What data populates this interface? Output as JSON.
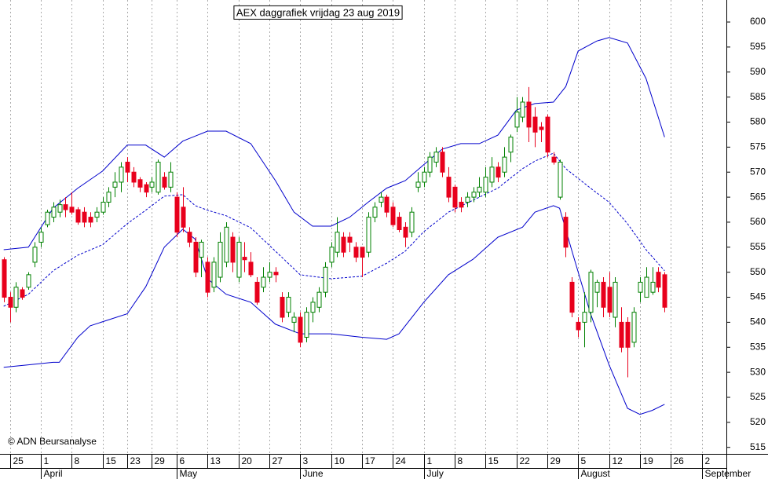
{
  "chart_data": {
    "type": "candlestick",
    "title": "AEX daggrafiek vrijdag 23 aug 2019",
    "annotation": "© ADN Beursanalyse",
    "x": [
      0,
      1,
      2,
      3,
      4,
      5,
      6,
      7,
      8,
      9,
      10,
      11,
      12,
      13,
      14,
      15,
      16,
      17,
      18,
      19,
      20,
      21,
      22,
      23,
      24,
      25,
      26,
      27,
      28,
      29,
      30,
      31,
      32,
      33,
      34,
      35,
      36,
      37,
      38,
      39,
      40,
      41,
      42,
      43,
      44,
      45,
      46,
      47,
      48,
      49,
      50,
      51,
      52,
      53,
      54,
      55,
      56,
      57,
      58,
      59,
      60,
      61,
      62,
      63,
      64,
      65,
      66,
      67,
      68,
      69,
      70,
      71,
      72,
      73,
      74,
      75,
      76,
      77,
      78,
      79,
      80,
      81,
      82,
      83,
      84,
      85,
      86,
      87,
      88,
      89,
      90,
      91,
      92,
      93,
      94,
      95,
      96,
      97,
      98,
      99,
      100,
      101,
      102,
      103,
      104,
      105,
      106,
      107
    ],
    "open": [
      552.5,
      545,
      543,
      546.5,
      547,
      552,
      556,
      559.5,
      561,
      562,
      563.5,
      563,
      562.5,
      562,
      561,
      561,
      562,
      564,
      567,
      568,
      572,
      570,
      568.5,
      567.5,
      567,
      566,
      569,
      567,
      565,
      563,
      558,
      556,
      553,
      552,
      547,
      549,
      552,
      557,
      549,
      553,
      552,
      548,
      547,
      549,
      550,
      545,
      542,
      540,
      541,
      537,
      542,
      543,
      546,
      552,
      554,
      557,
      557,
      555,
      555,
      554,
      561,
      564,
      565,
      563,
      561,
      559,
      558,
      567,
      568,
      570,
      572,
      574,
      569,
      567,
      564,
      564,
      565,
      566,
      566,
      568,
      571,
      570,
      574,
      579,
      581,
      584,
      581,
      579,
      581,
      573,
      565,
      561,
      548,
      540,
      540,
      542,
      546,
      548,
      547,
      541,
      540,
      540,
      536,
      546,
      545,
      546,
      550,
      549.5
    ],
    "high": [
      553,
      546,
      548,
      547,
      550,
      556,
      559,
      562.5,
      564,
      564.5,
      565,
      566,
      563,
      563,
      562,
      563,
      565,
      567,
      570,
      572,
      573,
      571,
      569,
      568,
      569,
      572.5,
      570,
      572,
      566,
      567,
      559,
      557,
      556.5,
      553,
      553,
      558,
      560,
      558,
      557,
      556,
      554,
      549,
      551,
      552,
      551,
      546,
      546,
      542,
      542,
      543,
      545,
      547,
      552,
      556,
      561,
      558,
      558,
      556,
      555,
      562,
      564,
      566,
      565.5,
      564,
      562,
      560,
      563,
      570,
      571,
      574,
      575,
      575,
      571,
      567.5,
      565,
      566,
      567,
      569,
      571,
      573,
      572,
      575,
      577.5,
      585,
      585,
      587,
      583,
      580,
      581.5,
      574,
      572.5,
      562,
      549,
      541,
      546,
      550.5,
      548.5,
      549,
      550,
      549,
      543,
      541,
      543,
      549,
      551,
      551,
      551,
      550
    ],
    "low": [
      544,
      540,
      542,
      544.5,
      546.5,
      551,
      555,
      559,
      560,
      561,
      561,
      561.5,
      559.5,
      559,
      559,
      560,
      561.5,
      563,
      565,
      566,
      568,
      567,
      566,
      565,
      566,
      565.5,
      566.5,
      566,
      557,
      558,
      555,
      549,
      549,
      545,
      546,
      548,
      551,
      550,
      548,
      550,
      549,
      543.5,
      546,
      548,
      548,
      540,
      541,
      538,
      535,
      536,
      540,
      542,
      545,
      551,
      553,
      553,
      554,
      552,
      549,
      553,
      560,
      563,
      561,
      559,
      558,
      555,
      557,
      566,
      567,
      569,
      571,
      569,
      564,
      562,
      562,
      563,
      564,
      565,
      565,
      567,
      568,
      569,
      572,
      578,
      580,
      576,
      575,
      576,
      573,
      571.5,
      564.5,
      553,
      541,
      537,
      535,
      540,
      543,
      541,
      541,
      539,
      534,
      529,
      535,
      544,
      545,
      545.5,
      546,
      542
    ],
    "close": [
      545,
      543,
      547,
      545,
      549.5,
      555,
      558,
      562,
      563,
      563.5,
      562.5,
      562,
      560,
      560,
      560,
      562,
      564,
      566,
      568,
      571,
      570,
      568,
      567,
      566,
      568,
      572,
      567,
      570,
      558,
      559,
      556,
      550,
      556,
      546,
      552,
      556,
      559,
      552,
      556,
      552.5,
      549.5,
      544,
      549,
      550,
      549.5,
      541,
      545,
      541,
      536,
      542,
      544,
      546,
      551,
      555,
      558,
      554,
      556,
      553,
      553,
      561,
      563,
      565,
      562,
      559.5,
      558.5,
      557,
      562,
      568,
      570,
      573,
      574,
      570,
      565,
      563,
      563,
      565,
      566,
      567,
      569,
      571,
      569,
      573,
      577,
      582,
      584,
      579,
      578,
      578.5,
      574,
      572,
      572,
      555,
      542,
      538.5,
      542,
      550,
      548,
      543,
      542,
      548,
      535,
      535,
      542,
      548,
      549,
      548,
      547,
      543
    ],
    "up_color": "#008000",
    "down_color": "#e8001c",
    "bands": [
      {
        "x": [
          0,
          4,
          8,
          12,
          16,
          20,
          23,
          26,
          29,
          33,
          36,
          40,
          44,
          47,
          50,
          53,
          56,
          59,
          62,
          65,
          68,
          71,
          74,
          77,
          80,
          83,
          86,
          89,
          91,
          93,
          96,
          98,
          101,
          104,
          107
        ],
        "values": [
          554.5,
          555,
          562.8,
          566.8,
          570.2,
          575.4,
          575.4,
          573,
          576.2,
          578.2,
          578.2,
          575.7,
          568.3,
          562,
          559.2,
          559.2,
          561,
          564,
          566.8,
          568.3,
          571.5,
          574.6,
          575.7,
          575.7,
          577.4,
          582.4,
          583.7,
          584,
          587.1,
          594.2,
          596.2,
          596.9,
          595.8,
          588.7,
          577
        ],
        "color": "#0000cc",
        "style": "solid"
      },
      {
        "x": [
          0,
          4,
          8,
          12,
          16,
          20,
          23,
          26,
          29,
          31,
          33,
          36,
          40,
          44,
          48,
          53,
          58,
          62,
          65,
          68,
          72,
          76,
          80,
          84,
          86,
          89,
          91,
          95,
          98,
          101,
          104,
          107
        ],
        "values": [
          543.2,
          545.6,
          550.3,
          553.4,
          555.5,
          559.7,
          562.4,
          565.2,
          565.5,
          563.3,
          562.4,
          561.3,
          558.9,
          554.2,
          549.5,
          548.7,
          549.2,
          551.8,
          554.2,
          558.1,
          562,
          564.4,
          566.8,
          570.7,
          572.2,
          573.8,
          570.7,
          566.8,
          564,
          559.7,
          554.5,
          550.3
        ],
        "color": "#0000cc",
        "style": "dashed"
      },
      {
        "x": [
          0,
          4,
          8,
          9,
          12,
          14,
          20,
          23,
          26,
          29,
          31,
          33,
          36,
          40,
          44,
          48,
          53,
          58,
          62,
          64,
          68,
          72,
          76,
          80,
          84,
          86,
          89,
          90,
          92,
          95,
          98,
          101,
          103,
          105,
          107
        ],
        "values": [
          531,
          531.5,
          532,
          532,
          537,
          539.3,
          541.7,
          547.1,
          555,
          558.6,
          556.6,
          548.7,
          545.6,
          544,
          539.6,
          537.7,
          537.7,
          537,
          536.6,
          537.7,
          544,
          549.5,
          552.6,
          557,
          559,
          562,
          563.3,
          562.8,
          554.2,
          541.7,
          531.5,
          522.8,
          521.6,
          522.4,
          523.6
        ],
        "color": "#0000cc",
        "style": "solid"
      }
    ],
    "xlim": [
      -0.6,
      117
    ],
    "xticks": [
      {
        "value": 1,
        "label": "25"
      },
      {
        "value": 6,
        "label": "1"
      },
      {
        "value": 11,
        "label": "8"
      },
      {
        "value": 16,
        "label": "15"
      },
      {
        "value": 20,
        "label": "23"
      },
      {
        "value": 24,
        "label": "29"
      },
      {
        "value": 28,
        "label": "6"
      },
      {
        "value": 33,
        "label": "13"
      },
      {
        "value": 38,
        "label": "20"
      },
      {
        "value": 43,
        "label": "27"
      },
      {
        "value": 48,
        "label": "3"
      },
      {
        "value": 53,
        "label": "10"
      },
      {
        "value": 58,
        "label": "17"
      },
      {
        "value": 63,
        "label": "24"
      },
      {
        "value": 68,
        "label": "1"
      },
      {
        "value": 73,
        "label": "8"
      },
      {
        "value": 78,
        "label": "15"
      },
      {
        "value": 83,
        "label": "22"
      },
      {
        "value": 88,
        "label": "29"
      },
      {
        "value": 93,
        "label": "5"
      },
      {
        "value": 98,
        "label": "12"
      },
      {
        "value": 103,
        "label": "19"
      },
      {
        "value": 108,
        "label": "26"
      },
      {
        "value": 113,
        "label": "2"
      }
    ],
    "month_ticks": [
      {
        "value": 6,
        "label": "April"
      },
      {
        "value": 28,
        "label": "May"
      },
      {
        "value": 48,
        "label": "June"
      },
      {
        "value": 68,
        "label": "July"
      },
      {
        "value": 93,
        "label": "August"
      },
      {
        "value": 113,
        "label": "September"
      }
    ],
    "ylim": [
      513.7,
      604.4
    ],
    "yticks": [
      515,
      520,
      525,
      530,
      535,
      540,
      545,
      550,
      555,
      560,
      565,
      570,
      575,
      580,
      585,
      590,
      595,
      600
    ],
    "grid": "x"
  }
}
